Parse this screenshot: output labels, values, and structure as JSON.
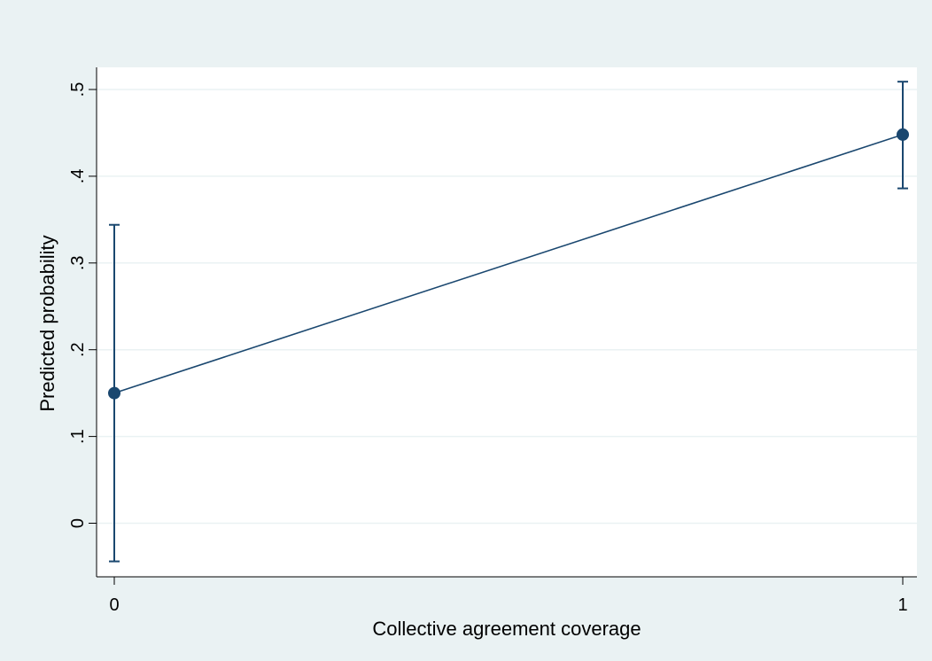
{
  "chart_data": {
    "type": "line",
    "title": "",
    "xlabel": "Collective agreement coverage",
    "ylabel": "Predicted probability",
    "x": [
      0,
      1
    ],
    "x_ticks": [
      {
        "value": 0,
        "label": "0"
      },
      {
        "value": 1,
        "label": "1"
      }
    ],
    "y_ticks": [
      {
        "value": 0,
        "label": "0"
      },
      {
        "value": 0.1,
        "label": ".1"
      },
      {
        "value": 0.2,
        "label": ".2"
      },
      {
        "value": 0.3,
        "label": ".3"
      },
      {
        "value": 0.4,
        "label": ".4"
      },
      {
        "value": 0.5,
        "label": ".5"
      }
    ],
    "xlim": [
      0,
      1
    ],
    "ylim": [
      -0.045,
      0.52
    ],
    "grid": "horizontal",
    "legend": "none",
    "series": [
      {
        "values": [
          0.15,
          0.448
        ],
        "ci_lower": [
          -0.044,
          0.386
        ],
        "ci_upper": [
          0.344,
          0.509
        ]
      }
    ],
    "colors": {
      "outer_background": "#eaf2f3",
      "plot_background": "#ffffff",
      "gridline": "#eaf2f3",
      "series": "#1a476f",
      "axis": "#000000"
    }
  }
}
